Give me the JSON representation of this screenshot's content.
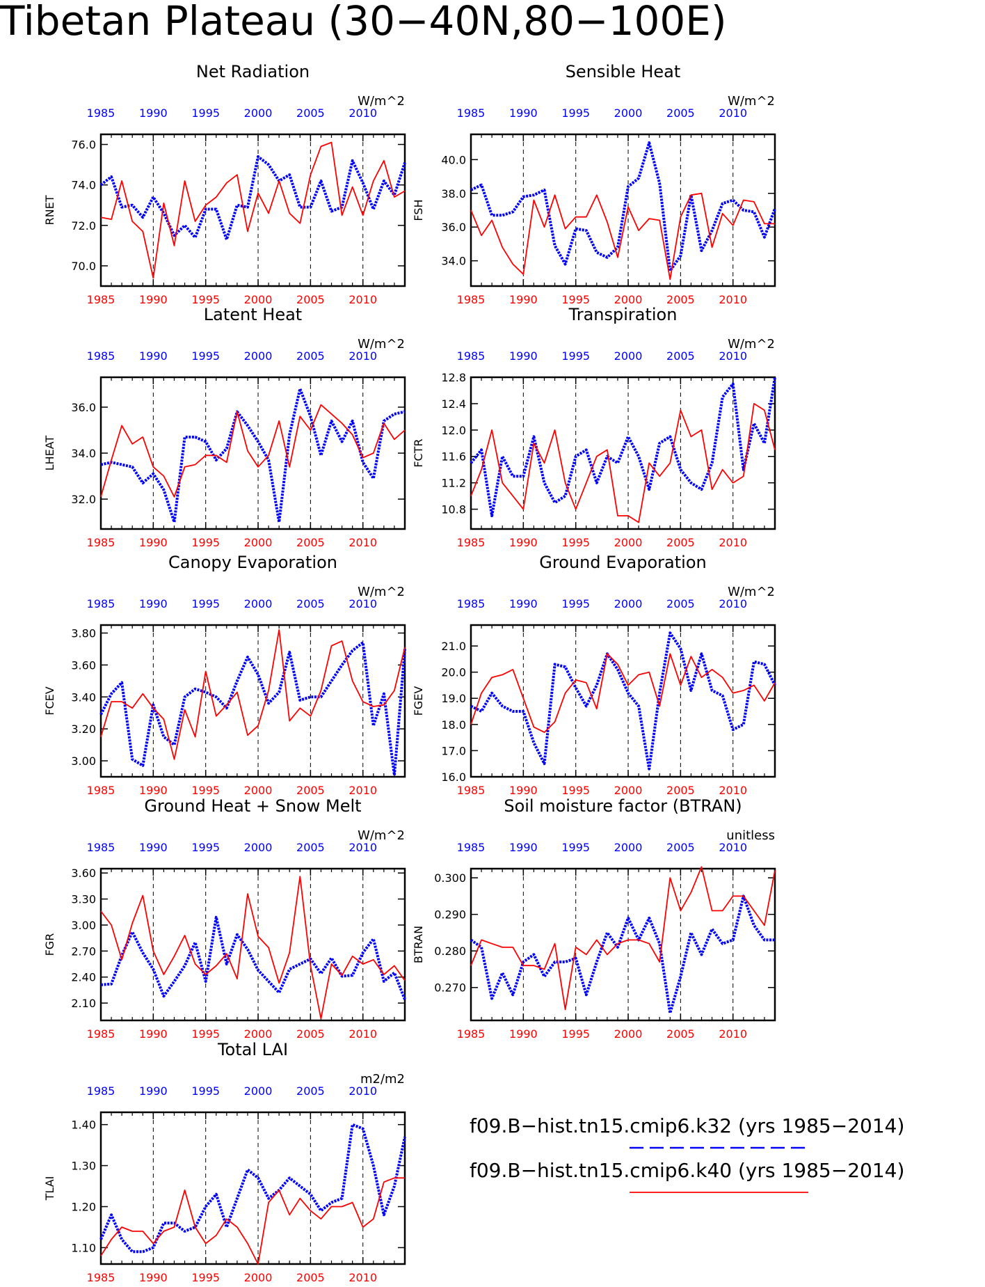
{
  "title": "Tibetan Plateau (30−40N,80−100E)",
  "colors": {
    "k32": "#0000ff",
    "k40": "#ff0000",
    "frame": "#000000"
  },
  "legend": {
    "entries": [
      {
        "label": "f09.B−hist.tn15.cmip6.k32 (yrs 1985−2014)",
        "style": "blue-dash"
      },
      {
        "label": "f09.B−hist.tn15.cmip6.k40 (yrs 1985−2014)",
        "style": "red-solid"
      }
    ]
  },
  "chart_data": [
    {
      "type": "line",
      "title": "Net Radiation",
      "units": "W/m^2",
      "ylabel": "RNET",
      "ylim": [
        69.0,
        76.5
      ],
      "yticks": [
        70.0,
        72.0,
        74.0,
        76.0
      ],
      "tick_decimals": 1,
      "x": [
        1985,
        1986,
        1987,
        1988,
        1989,
        1990,
        1991,
        1992,
        1993,
        1994,
        1995,
        1996,
        1997,
        1998,
        1999,
        2000,
        2001,
        2002,
        2003,
        2004,
        2005,
        2006,
        2007,
        2008,
        2009,
        2010,
        2011,
        2012,
        2013,
        2014
      ],
      "xticks": [
        1985,
        1990,
        1995,
        2000,
        2005,
        2010
      ],
      "xlim": [
        1985,
        2014
      ],
      "series": [
        {
          "name": "k32",
          "values": [
            74.0,
            74.4,
            72.9,
            73.0,
            72.4,
            73.4,
            72.6,
            71.5,
            72.0,
            71.4,
            72.8,
            72.8,
            71.3,
            73.0,
            72.9,
            75.4,
            75.0,
            74.2,
            74.5,
            72.9,
            72.9,
            74.2,
            72.7,
            72.9,
            75.2,
            74.1,
            72.8,
            74.2,
            73.5,
            75.1
          ]
        },
        {
          "name": "k40",
          "values": [
            72.4,
            72.3,
            74.2,
            72.2,
            71.7,
            69.4,
            73.1,
            71.0,
            74.2,
            72.2,
            73.0,
            73.4,
            74.1,
            74.5,
            71.7,
            73.6,
            72.6,
            74.2,
            72.6,
            72.1,
            74.5,
            75.9,
            76.1,
            72.5,
            73.9,
            72.5,
            74.2,
            75.2,
            73.4,
            73.7
          ]
        }
      ]
    },
    {
      "type": "line",
      "title": "Sensible Heat",
      "units": "W/m^2",
      "ylabel": "FSH",
      "ylim": [
        32.5,
        41.5
      ],
      "yticks": [
        34.0,
        36.0,
        38.0,
        40.0
      ],
      "tick_decimals": 1,
      "x": [
        1985,
        1986,
        1987,
        1988,
        1989,
        1990,
        1991,
        1992,
        1993,
        1994,
        1995,
        1996,
        1997,
        1998,
        1999,
        2000,
        2001,
        2002,
        2003,
        2004,
        2005,
        2006,
        2007,
        2008,
        2009,
        2010,
        2011,
        2012,
        2013,
        2014
      ],
      "xticks": [
        1985,
        1990,
        1995,
        2000,
        2005,
        2010
      ],
      "xlim": [
        1985,
        2014
      ],
      "series": [
        {
          "name": "k32",
          "values": [
            38.2,
            38.5,
            36.7,
            36.7,
            36.9,
            37.8,
            37.9,
            38.2,
            34.9,
            33.8,
            35.9,
            35.8,
            34.5,
            34.2,
            34.8,
            38.4,
            38.9,
            41.0,
            38.6,
            33.4,
            34.3,
            37.9,
            34.6,
            35.8,
            37.4,
            37.6,
            37.0,
            36.9,
            35.4,
            37.1
          ]
        },
        {
          "name": "k40",
          "values": [
            37.0,
            35.5,
            36.4,
            34.8,
            33.8,
            33.2,
            37.6,
            36.0,
            37.9,
            35.9,
            36.6,
            36.6,
            37.9,
            36.3,
            34.2,
            37.2,
            35.8,
            36.5,
            36.4,
            32.9,
            36.6,
            37.9,
            38.0,
            34.8,
            36.8,
            36.1,
            37.6,
            37.5,
            36.2,
            36.2
          ]
        }
      ]
    },
    {
      "type": "line",
      "title": "Latent Heat",
      "units": "W/m^2",
      "ylabel": "LHEAT",
      "ylim": [
        30.7,
        37.3
      ],
      "yticks": [
        32.0,
        34.0,
        36.0
      ],
      "tick_decimals": 1,
      "x": [
        1985,
        1986,
        1987,
        1988,
        1989,
        1990,
        1991,
        1992,
        1993,
        1994,
        1995,
        1996,
        1997,
        1998,
        1999,
        2000,
        2001,
        2002,
        2003,
        2004,
        2005,
        2006,
        2007,
        2008,
        2009,
        2010,
        2011,
        2012,
        2013,
        2014
      ],
      "xticks": [
        1985,
        1990,
        1995,
        2000,
        2005,
        2010
      ],
      "xlim": [
        1985,
        2014
      ],
      "series": [
        {
          "name": "k32",
          "values": [
            33.5,
            33.6,
            33.5,
            33.4,
            32.7,
            33.1,
            32.4,
            31.0,
            34.7,
            34.7,
            34.5,
            33.7,
            34.2,
            35.8,
            35.2,
            34.5,
            33.7,
            31.0,
            34.8,
            36.8,
            35.6,
            33.9,
            35.4,
            34.5,
            35.4,
            33.6,
            32.9,
            35.4,
            35.7,
            35.8
          ]
        },
        {
          "name": "k40",
          "values": [
            32.1,
            33.7,
            35.2,
            34.4,
            34.7,
            33.4,
            33.0,
            32.1,
            33.4,
            33.5,
            33.9,
            33.9,
            33.6,
            35.8,
            34.1,
            33.4,
            33.9,
            35.4,
            33.4,
            35.6,
            35.0,
            36.1,
            35.7,
            35.3,
            34.8,
            33.8,
            34.0,
            35.3,
            34.6,
            35.0
          ]
        }
      ]
    },
    {
      "type": "line",
      "title": "Transpiration",
      "units": "W/m^2",
      "ylabel": "FCTR",
      "ylim": [
        10.5,
        12.8
      ],
      "yticks": [
        10.8,
        11.2,
        11.6,
        12.0,
        12.4,
        12.8
      ],
      "tick_decimals": 1,
      "x": [
        1985,
        1986,
        1987,
        1988,
        1989,
        1990,
        1991,
        1992,
        1993,
        1994,
        1995,
        1996,
        1997,
        1998,
        1999,
        2000,
        2001,
        2002,
        2003,
        2004,
        2005,
        2006,
        2007,
        2008,
        2009,
        2010,
        2011,
        2012,
        2013,
        2014
      ],
      "xticks": [
        1985,
        1990,
        1995,
        2000,
        2005,
        2010
      ],
      "xlim": [
        1985,
        2014
      ],
      "series": [
        {
          "name": "k32",
          "values": [
            11.5,
            11.7,
            10.7,
            11.6,
            11.3,
            11.3,
            11.9,
            11.2,
            10.9,
            11.0,
            11.6,
            11.7,
            11.2,
            11.6,
            11.5,
            11.9,
            11.6,
            11.1,
            11.8,
            11.9,
            11.4,
            11.2,
            11.1,
            11.5,
            12.5,
            12.7,
            11.4,
            12.1,
            11.8,
            12.8
          ]
        },
        {
          "name": "k40",
          "values": [
            11.0,
            11.4,
            12.0,
            11.2,
            11.0,
            10.8,
            11.8,
            11.5,
            12.0,
            11.2,
            10.8,
            11.2,
            11.6,
            11.7,
            10.7,
            10.7,
            10.6,
            11.5,
            11.3,
            11.5,
            12.3,
            11.9,
            12.0,
            11.1,
            11.4,
            11.2,
            11.3,
            12.4,
            12.3,
            11.7
          ]
        }
      ]
    },
    {
      "type": "line",
      "title": "Canopy Evaporation",
      "units": "W/m^2",
      "ylabel": "FCEV",
      "ylim": [
        2.9,
        3.85
      ],
      "yticks": [
        3.0,
        3.2,
        3.4,
        3.6,
        3.8
      ],
      "tick_decimals": 2,
      "x": [
        1985,
        1986,
        1987,
        1988,
        1989,
        1990,
        1991,
        1992,
        1993,
        1994,
        1995,
        1996,
        1997,
        1998,
        1999,
        2000,
        2001,
        2002,
        2003,
        2004,
        2005,
        2006,
        2007,
        2008,
        2009,
        2010,
        2011,
        2012,
        2013,
        2014
      ],
      "xticks": [
        1985,
        1990,
        1995,
        2000,
        2005,
        2010
      ],
      "xlim": [
        1985,
        2014
      ],
      "series": [
        {
          "name": "k32",
          "values": [
            3.29,
            3.42,
            3.49,
            3.01,
            2.97,
            3.35,
            3.15,
            3.1,
            3.4,
            3.45,
            3.43,
            3.4,
            3.33,
            3.5,
            3.65,
            3.54,
            3.36,
            3.43,
            3.68,
            3.38,
            3.4,
            3.4,
            3.5,
            3.6,
            3.69,
            3.74,
            3.22,
            3.42,
            2.91,
            3.7
          ]
        },
        {
          "name": "k40",
          "values": [
            3.15,
            3.37,
            3.37,
            3.33,
            3.42,
            3.33,
            3.26,
            3.01,
            3.32,
            3.15,
            3.56,
            3.28,
            3.35,
            3.43,
            3.16,
            3.22,
            3.44,
            3.82,
            3.25,
            3.33,
            3.28,
            3.44,
            3.72,
            3.75,
            3.5,
            3.37,
            3.34,
            3.35,
            3.44,
            3.71
          ]
        }
      ]
    },
    {
      "type": "line",
      "title": "Ground Evaporation",
      "units": "W/m^2",
      "ylabel": "FGEV",
      "ylim": [
        16.0,
        21.8
      ],
      "yticks": [
        16.0,
        17.0,
        18.0,
        19.0,
        20.0,
        21.0
      ],
      "tick_decimals": 1,
      "x": [
        1985,
        1986,
        1987,
        1988,
        1989,
        1990,
        1991,
        1992,
        1993,
        1994,
        1995,
        1996,
        1997,
        1998,
        1999,
        2000,
        2001,
        2002,
        2003,
        2004,
        2005,
        2006,
        2007,
        2008,
        2009,
        2010,
        2011,
        2012,
        2013,
        2014
      ],
      "xticks": [
        1985,
        1990,
        1995,
        2000,
        2005,
        2010
      ],
      "xlim": [
        1985,
        2014
      ],
      "series": [
        {
          "name": "k32",
          "values": [
            18.7,
            18.5,
            19.2,
            18.7,
            18.5,
            18.5,
            17.3,
            16.5,
            20.3,
            20.2,
            19.4,
            18.7,
            19.5,
            20.7,
            20.1,
            19.2,
            18.7,
            16.3,
            19.2,
            21.5,
            20.9,
            19.3,
            20.7,
            19.3,
            19.1,
            17.8,
            18.0,
            20.4,
            20.3,
            19.5
          ]
        },
        {
          "name": "k40",
          "values": [
            18.0,
            19.2,
            19.8,
            19.9,
            20.1,
            19.0,
            17.9,
            17.7,
            18.1,
            19.2,
            19.7,
            19.6,
            18.6,
            20.7,
            20.3,
            19.5,
            19.9,
            20.0,
            18.7,
            20.7,
            19.5,
            20.6,
            19.8,
            20.1,
            19.8,
            19.2,
            19.3,
            19.5,
            18.9,
            19.6
          ]
        }
      ]
    },
    {
      "type": "line",
      "title": "Ground Heat + Snow Melt",
      "units": "W/m^2",
      "ylabel": "FGR",
      "ylim": [
        1.9,
        3.65
      ],
      "yticks": [
        2.1,
        2.4,
        2.7,
        3.0,
        3.3,
        3.6
      ],
      "tick_decimals": 2,
      "x": [
        1985,
        1986,
        1987,
        1988,
        1989,
        1990,
        1991,
        1992,
        1993,
        1994,
        1995,
        1996,
        1997,
        1998,
        1999,
        2000,
        2001,
        2002,
        2003,
        2004,
        2005,
        2006,
        2007,
        2008,
        2009,
        2010,
        2011,
        2012,
        2013,
        2014
      ],
      "xticks": [
        1985,
        1990,
        1995,
        2000,
        2005,
        2010
      ],
      "xlim": [
        1985,
        2014
      ],
      "series": [
        {
          "name": "k32",
          "values": [
            2.31,
            2.32,
            2.65,
            2.92,
            2.68,
            2.49,
            2.18,
            2.35,
            2.53,
            2.8,
            2.35,
            3.09,
            2.55,
            2.89,
            2.72,
            2.48,
            2.35,
            2.22,
            2.49,
            2.55,
            2.61,
            2.44,
            2.62,
            2.41,
            2.42,
            2.68,
            2.84,
            2.35,
            2.45,
            2.14
          ]
        },
        {
          "name": "k40",
          "values": [
            3.16,
            3.0,
            2.6,
            3.02,
            3.34,
            2.7,
            2.43,
            2.64,
            2.88,
            2.55,
            2.43,
            2.53,
            2.67,
            2.38,
            3.36,
            2.87,
            2.74,
            2.33,
            2.68,
            3.56,
            2.53,
            1.92,
            2.55,
            2.42,
            2.64,
            2.55,
            2.6,
            2.43,
            2.53,
            2.36
          ]
        }
      ]
    },
    {
      "type": "line",
      "title": "Soil moisture factor (BTRAN)",
      "units": "unitless",
      "ylabel": "BTRAN",
      "ylim": [
        0.261,
        0.3025
      ],
      "yticks": [
        0.27,
        0.28,
        0.29,
        0.3
      ],
      "tick_decimals": 3,
      "x": [
        1985,
        1986,
        1987,
        1988,
        1989,
        1990,
        1991,
        1992,
        1993,
        1994,
        1995,
        1996,
        1997,
        1998,
        1999,
        2000,
        2001,
        2002,
        2003,
        2004,
        2005,
        2006,
        2007,
        2008,
        2009,
        2010,
        2011,
        2012,
        2013,
        2014
      ],
      "xticks": [
        1985,
        1990,
        1995,
        2000,
        2005,
        2010
      ],
      "xlim": [
        1985,
        2014
      ],
      "series": [
        {
          "name": "k32",
          "values": [
            0.283,
            0.281,
            0.267,
            0.274,
            0.268,
            0.277,
            0.279,
            0.273,
            0.277,
            0.277,
            0.278,
            0.268,
            0.277,
            0.285,
            0.281,
            0.289,
            0.283,
            0.289,
            0.282,
            0.263,
            0.273,
            0.285,
            0.279,
            0.286,
            0.282,
            0.283,
            0.295,
            0.287,
            0.283,
            0.283
          ]
        },
        {
          "name": "k40",
          "values": [
            0.276,
            0.283,
            0.282,
            0.281,
            0.281,
            0.276,
            0.276,
            0.275,
            0.282,
            0.264,
            0.281,
            0.279,
            0.283,
            0.279,
            0.282,
            0.283,
            0.283,
            0.282,
            0.277,
            0.3,
            0.291,
            0.296,
            0.303,
            0.291,
            0.291,
            0.295,
            0.295,
            0.291,
            0.287,
            0.302
          ]
        }
      ]
    },
    {
      "type": "line",
      "title": "Total LAI",
      "units": "m2/m2",
      "ylabel": "TLAI",
      "ylim": [
        1.06,
        1.43
      ],
      "yticks": [
        1.1,
        1.2,
        1.3,
        1.4
      ],
      "tick_decimals": 2,
      "x": [
        1985,
        1986,
        1987,
        1988,
        1989,
        1990,
        1991,
        1992,
        1993,
        1994,
        1995,
        1996,
        1997,
        1998,
        1999,
        2000,
        2001,
        2002,
        2003,
        2004,
        2005,
        2006,
        2007,
        2008,
        2009,
        2010,
        2011,
        2012,
        2013,
        2014
      ],
      "xticks": [
        1985,
        1990,
        1995,
        2000,
        2005,
        2010
      ],
      "xlim": [
        1985,
        2014
      ],
      "series": [
        {
          "name": "k32",
          "values": [
            1.12,
            1.18,
            1.12,
            1.09,
            1.09,
            1.1,
            1.16,
            1.16,
            1.14,
            1.15,
            1.2,
            1.23,
            1.15,
            1.22,
            1.29,
            1.27,
            1.22,
            1.24,
            1.27,
            1.25,
            1.23,
            1.19,
            1.21,
            1.22,
            1.4,
            1.39,
            1.3,
            1.18,
            1.25,
            1.37
          ]
        },
        {
          "name": "k40",
          "values": [
            1.08,
            1.12,
            1.15,
            1.14,
            1.14,
            1.11,
            1.14,
            1.15,
            1.24,
            1.15,
            1.11,
            1.13,
            1.17,
            1.15,
            1.11,
            1.06,
            1.21,
            1.24,
            1.18,
            1.22,
            1.19,
            1.17,
            1.2,
            1.2,
            1.21,
            1.15,
            1.17,
            1.26,
            1.27,
            1.27
          ]
        }
      ]
    }
  ]
}
